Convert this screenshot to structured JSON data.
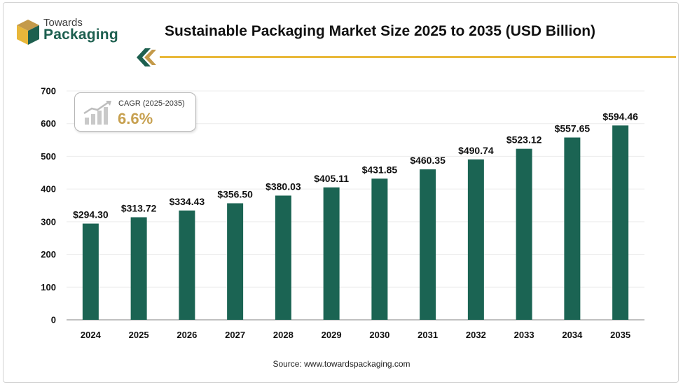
{
  "brand": {
    "line1": "Towards",
    "line2": "Packaging"
  },
  "chart_data": {
    "type": "bar",
    "title": "Sustainable Packaging Market Size 2025 to 2035 (USD Billion)",
    "categories": [
      "2024",
      "2025",
      "2026",
      "2027",
      "2028",
      "2029",
      "2030",
      "2031",
      "2032",
      "2033",
      "2034",
      "2035"
    ],
    "values": [
      294.3,
      313.72,
      334.43,
      356.5,
      380.03,
      405.11,
      431.85,
      460.35,
      490.74,
      523.12,
      557.65,
      594.46
    ],
    "data_labels": [
      "$294.30",
      "$313.72",
      "$334.43",
      "$356.50",
      "$380.03",
      "$405.11",
      "$431.85",
      "$460.35",
      "$490.74",
      "$523.12",
      "$557.65",
      "$594.46"
    ],
    "xlabel": "",
    "ylabel": "",
    "ylim": [
      0,
      700
    ],
    "yticks": [
      0,
      100,
      200,
      300,
      400,
      500,
      600,
      700
    ],
    "grid": true,
    "bar_color": "#1b6453"
  },
  "cagr": {
    "label": "CAGR (2025-2035)",
    "value": "6.6%"
  },
  "source": "Source: www.towardspackaging.com",
  "colors": {
    "accent": "#e9b93b",
    "brand_green": "#1d5f4f",
    "cagr_gold": "#c7a04f"
  }
}
